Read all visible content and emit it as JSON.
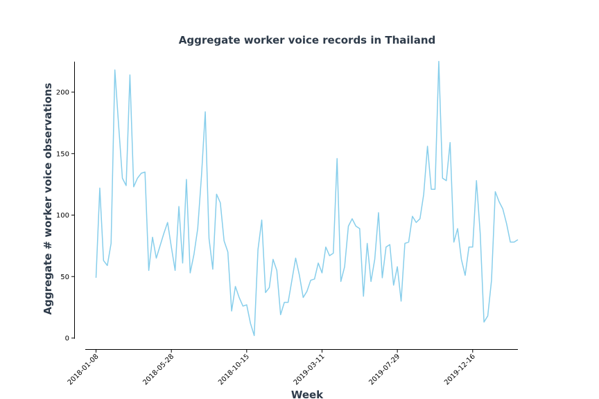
{
  "chart_data": {
    "type": "line",
    "title": "Aggregate worker voice records in Thailand",
    "xlabel": "Week",
    "ylabel": "Aggregate # worker voice observations",
    "x_tick_labels": [
      "2018-01-08",
      "2018-05-28",
      "2018-10-15",
      "2019-03-11",
      "2019-07-29",
      "2019-12-16"
    ],
    "y_ticks": [
      0,
      50,
      100,
      150,
      200
    ],
    "ylim": [
      -8,
      225
    ],
    "grid": false,
    "color": "#87ceeb",
    "x_start": "2018-01-08",
    "x_interval_days": 7,
    "series": [
      {
        "values": [
          49,
          122,
          63,
          59,
          77,
          218,
          173,
          130,
          124,
          214,
          123,
          130,
          134,
          135,
          55,
          82,
          65,
          75,
          85,
          94,
          74,
          55,
          107,
          61,
          129,
          53,
          68,
          89,
          132,
          184,
          81,
          56,
          117,
          110,
          79,
          70,
          22,
          42,
          33,
          26,
          27,
          12,
          2,
          72,
          96,
          37,
          41,
          64,
          55,
          19,
          29,
          29,
          47,
          65,
          51,
          33,
          38,
          47,
          48,
          61,
          53,
          74,
          67,
          69,
          146,
          46,
          58,
          91,
          97,
          91,
          89,
          34,
          77,
          46,
          64,
          102,
          49,
          74,
          76,
          43,
          58,
          30,
          77,
          78,
          99,
          94,
          97,
          117,
          156,
          121,
          121,
          225,
          130,
          128,
          159,
          78,
          89,
          64,
          51,
          74,
          74,
          128,
          85,
          13,
          18,
          47,
          119,
          111,
          105,
          93,
          78,
          78,
          80
        ]
      }
    ]
  }
}
